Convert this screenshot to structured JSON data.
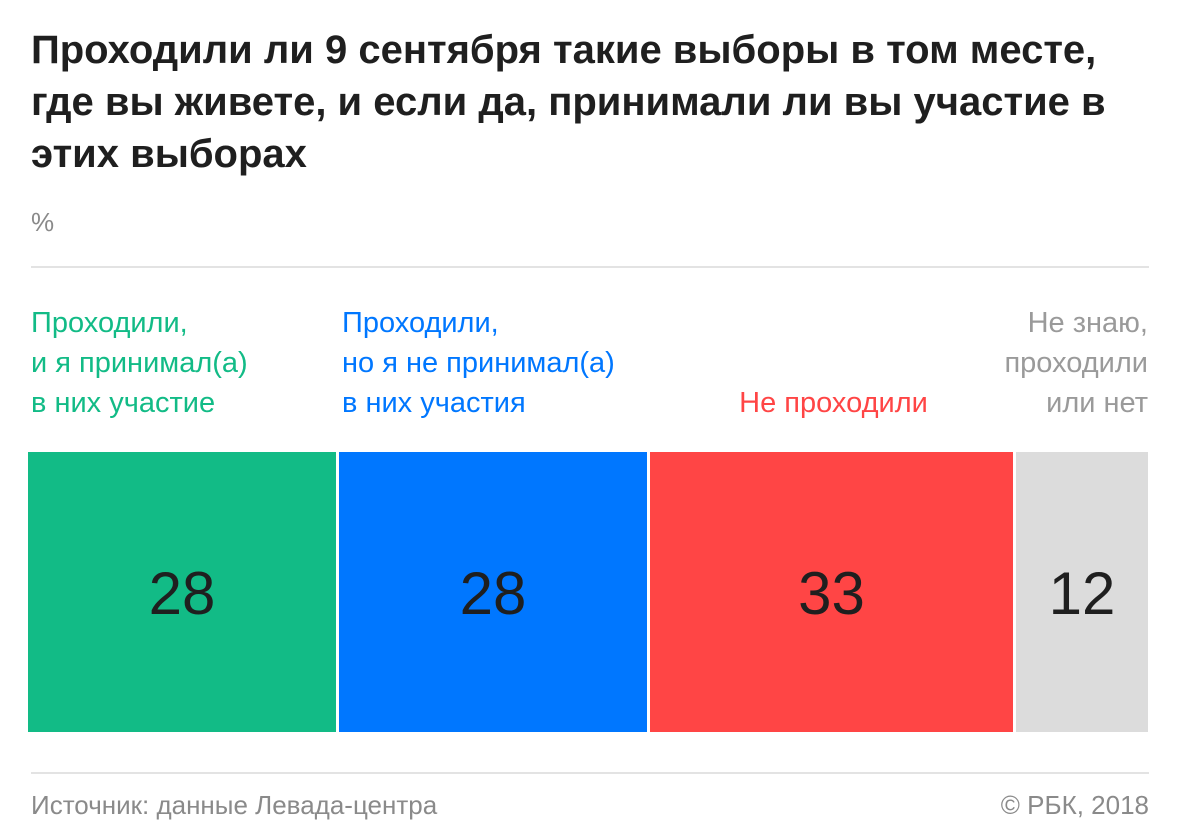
{
  "title": "Проходили ли 9 сентября такие выборы в том месте, где вы живете, и если да, принимали ли вы участие в этих выборах",
  "unit": "%",
  "source": "Источник: данные Левада-центра",
  "copyright": "© РБК, 2018",
  "chart_data": {
    "type": "bar",
    "orientation": "horizontal-stacked",
    "categories": [
      [
        "Проходили,",
        "и я принимал(а)",
        "в них участие"
      ],
      [
        "Проходили,",
        "но я не принимал(а)",
        "в них участия"
      ],
      [
        "Не проходили"
      ],
      [
        "Не знаю,",
        "проходили",
        "или нет"
      ]
    ],
    "values": [
      28,
      28,
      33,
      12
    ],
    "colors": [
      "#12bb86",
      "#0077ff",
      "#ff4545",
      "#dcdcdc"
    ],
    "label_colors": [
      "#12bb86",
      "#0077ff",
      "#ff4545",
      "#9a9a9a"
    ],
    "value_color": "#1f1f1f",
    "legend": "none"
  }
}
